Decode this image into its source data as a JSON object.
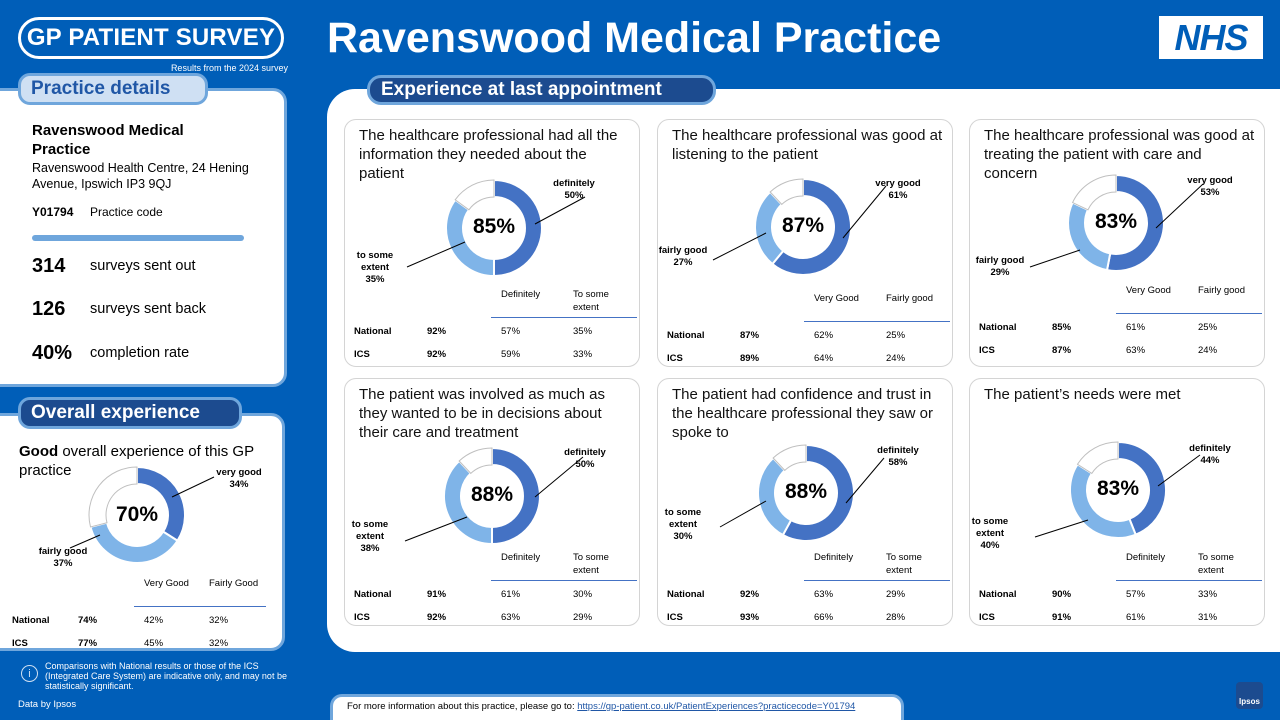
{
  "header": {
    "logo_text": "GP PATIENT SURVEY",
    "logo_sub": "Results from the 2024 survey",
    "title": "Ravenswood Medical Practice",
    "nhs_logo": "NHS"
  },
  "practice": {
    "tab": "Practice details",
    "name": "Ravenswood Medical Practice",
    "address": "Ravenswood Health Centre, 24 Hening Avenue, Ipswich IP3 9QJ",
    "code": "Y01794",
    "code_label": "Practice code",
    "stats": [
      {
        "value": "314",
        "label": "surveys sent out"
      },
      {
        "value": "126",
        "label": "surveys sent back"
      },
      {
        "value": "40%",
        "label": "completion rate"
      }
    ]
  },
  "overall": {
    "tab": "Overall experience",
    "title_bold": "Good",
    "title_rest": " overall experience of this GP practice",
    "pct": "70%",
    "label_a": "very good\n34%",
    "label_b": "fairly good\n37%",
    "col_a": "Very Good",
    "col_b": "Fairly Good",
    "rows": [
      {
        "name": "National",
        "total": "74%",
        "a": "42%",
        "b": "32%"
      },
      {
        "name": "ICS",
        "total": "77%",
        "a": "45%",
        "b": "32%"
      }
    ]
  },
  "section_title": "Experience at last appointment",
  "cards": [
    {
      "title": "The healthcare professional had all the information they needed about the patient",
      "pct": "85%",
      "label_a": "definitely\n50%",
      "label_b": "to some\nextent\n35%",
      "col_a": "Definitely",
      "col_b": "To some extent",
      "rows": [
        {
          "name": "National",
          "total": "92%",
          "a": "57%",
          "b": "35%"
        },
        {
          "name": "ICS",
          "total": "92%",
          "a": "59%",
          "b": "33%"
        }
      ]
    },
    {
      "title": "The healthcare professional was good at listening to the patient",
      "pct": "87%",
      "label_a": "very good\n61%",
      "label_b": "fairly good\n27%",
      "col_a": "Very Good",
      "col_b": "Fairly good",
      "rows": [
        {
          "name": "National",
          "total": "87%",
          "a": "62%",
          "b": "25%"
        },
        {
          "name": "ICS",
          "total": "89%",
          "a": "64%",
          "b": "24%"
        }
      ]
    },
    {
      "title": "The healthcare professional was good at treating the patient with care and concern",
      "pct": "83%",
      "label_a": "very good\n53%",
      "label_b": "fairly good\n29%",
      "col_a": "Very Good",
      "col_b": "Fairly good",
      "rows": [
        {
          "name": "National",
          "total": "85%",
          "a": "61%",
          "b": "25%"
        },
        {
          "name": "ICS",
          "total": "87%",
          "a": "63%",
          "b": "24%"
        }
      ]
    },
    {
      "title": "The patient was involved as much as they wanted to be in decisions about their care and treatment",
      "pct": "88%",
      "label_a": "definitely\n50%",
      "label_b": "to some\nextent\n38%",
      "col_a": "Definitely",
      "col_b": "To some extent",
      "rows": [
        {
          "name": "National",
          "total": "91%",
          "a": "61%",
          "b": "30%"
        },
        {
          "name": "ICS",
          "total": "92%",
          "a": "63%",
          "b": "29%"
        }
      ]
    },
    {
      "title": "The patient had confidence and trust in the healthcare professional they saw or spoke to",
      "pct": "88%",
      "label_a": "definitely\n58%",
      "label_b": "to some\nextent\n30%",
      "col_a": "Definitely",
      "col_b": "To some extent",
      "rows": [
        {
          "name": "National",
          "total": "92%",
          "a": "63%",
          "b": "29%"
        },
        {
          "name": "ICS",
          "total": "93%",
          "a": "66%",
          "b": "28%"
        }
      ]
    },
    {
      "title": "The patient’s needs were met",
      "pct": "83%",
      "label_a": "definitely\n44%",
      "label_b": "to some\nextent\n40%",
      "col_a": "Definitely",
      "col_b": "To some extent",
      "rows": [
        {
          "name": "National",
          "total": "90%",
          "a": "57%",
          "b": "33%"
        },
        {
          "name": "ICS",
          "total": "91%",
          "a": "61%",
          "b": "31%"
        }
      ]
    }
  ],
  "chart_data": [
    {
      "type": "pie",
      "title": "Good overall experience of this GP practice",
      "labels": [
        "very good",
        "fairly good",
        "other"
      ],
      "values": [
        34,
        37,
        29
      ]
    },
    {
      "type": "pie",
      "title": "The healthcare professional had all the information they needed about the patient",
      "labels": [
        "definitely",
        "to some extent",
        "other"
      ],
      "values": [
        50,
        35,
        15
      ]
    },
    {
      "type": "pie",
      "title": "The healthcare professional was good at listening to the patient",
      "labels": [
        "very good",
        "fairly good",
        "other"
      ],
      "values": [
        61,
        27,
        12
      ]
    },
    {
      "type": "pie",
      "title": "The healthcare professional was good at treating the patient with care and concern",
      "labels": [
        "very good",
        "fairly good",
        "other"
      ],
      "values": [
        53,
        29,
        18
      ]
    },
    {
      "type": "pie",
      "title": "The patient was involved as much as they wanted to be in decisions about their care and treatment",
      "labels": [
        "definitely",
        "to some extent",
        "other"
      ],
      "values": [
        50,
        38,
        12
      ]
    },
    {
      "type": "pie",
      "title": "The patient had confidence and trust in the healthcare professional they saw or spoke to",
      "labels": [
        "definitely",
        "to some extent",
        "other"
      ],
      "values": [
        58,
        30,
        12
      ]
    },
    {
      "type": "pie",
      "title": "The patient’s needs were met",
      "labels": [
        "definitely",
        "to some extent",
        "other"
      ],
      "values": [
        44,
        40,
        16
      ]
    }
  ],
  "colors": {
    "primary": "#4472c4",
    "secondary": "#7fb4e8",
    "rest": "#ffffff",
    "nhs_blue": "#005eb8"
  },
  "footer": {
    "note": "Comparisons with National results or those of the ICS (Integrated Care System) are indicative only, and may not be statistically significant.",
    "data_by": "Data by Ipsos",
    "info_prefix": "For more information about this practice, please go to: ",
    "link": "https://gp-patient.co.uk/PatientExperiences?practicecode=Y01794",
    "ipsos": "Ipsos"
  }
}
